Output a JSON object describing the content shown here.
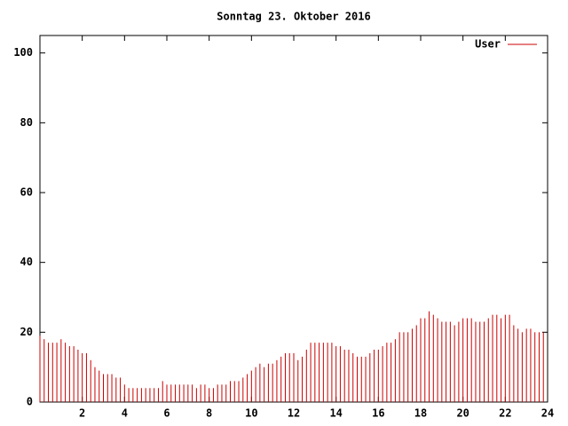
{
  "chart_data": {
    "type": "impulses",
    "title": "Sonntag 23. Oktober 2016",
    "x": [
      0,
      0.2,
      0.4,
      0.6,
      0.8,
      1,
      1.2,
      1.4,
      1.6,
      1.8,
      2,
      2.2,
      2.4,
      2.6,
      2.8,
      3,
      3.2,
      3.4,
      3.6,
      3.8,
      4,
      4.2,
      4.4,
      4.6,
      4.8,
      5,
      5.2,
      5.4,
      5.6,
      5.8,
      6,
      6.2,
      6.4,
      6.6,
      6.8,
      7,
      7.2,
      7.4,
      7.6,
      7.8,
      8,
      8.2,
      8.4,
      8.6,
      8.8,
      9,
      9.2,
      9.4,
      9.6,
      9.8,
      10,
      10.2,
      10.4,
      10.6,
      10.8,
      11,
      11.2,
      11.4,
      11.6,
      11.8,
      12,
      12.2,
      12.4,
      12.6,
      12.8,
      13,
      13.2,
      13.4,
      13.6,
      13.8,
      14,
      14.2,
      14.4,
      14.6,
      14.8,
      15,
      15.2,
      15.4,
      15.6,
      15.8,
      16,
      16.2,
      16.4,
      16.6,
      16.8,
      17,
      17.2,
      17.4,
      17.6,
      17.8,
      18,
      18.2,
      18.4,
      18.6,
      18.8,
      19,
      19.2,
      19.4,
      19.6,
      19.8,
      20,
      20.2,
      20.4,
      20.6,
      20.8,
      21,
      21.2,
      21.4,
      21.6,
      21.8,
      22,
      22.2,
      22.4,
      22.6,
      22.8,
      23,
      23.2,
      23.4,
      23.6,
      23.8
    ],
    "series": [
      {
        "name": "User",
        "color": "#cc0000",
        "values": [
          19,
          18,
          17,
          17,
          17,
          18,
          17,
          16,
          16,
          15,
          14,
          14,
          12,
          10,
          9,
          8,
          8,
          8,
          7,
          7,
          5,
          4,
          4,
          4,
          4,
          4,
          4,
          4,
          4,
          6,
          5,
          5,
          5,
          5,
          5,
          5,
          5,
          4,
          5,
          5,
          4,
          4,
          5,
          5,
          5,
          6,
          6,
          6,
          7,
          8,
          9,
          10,
          11,
          10,
          11,
          11,
          12,
          13,
          14,
          14,
          14,
          12,
          13,
          15,
          17,
          17,
          17,
          17,
          17,
          17,
          16,
          16,
          15,
          15,
          14,
          13,
          13,
          13,
          14,
          15,
          15,
          16,
          17,
          17,
          18,
          20,
          20,
          20,
          21,
          22,
          24,
          24,
          26,
          25,
          24,
          23,
          23,
          23,
          22,
          23,
          24,
          24,
          24,
          23,
          23,
          23,
          24,
          25,
          25,
          24,
          25,
          25,
          22,
          21,
          20,
          21,
          21,
          20,
          20,
          20
        ]
      }
    ],
    "xlim": [
      0,
      24
    ],
    "ylim": [
      0,
      105
    ],
    "xticks": [
      2,
      4,
      6,
      8,
      10,
      12,
      14,
      16,
      18,
      20,
      22,
      24
    ],
    "yticks": [
      0,
      20,
      40,
      60,
      80,
      100
    ],
    "legend": "top-right",
    "grid": false
  }
}
